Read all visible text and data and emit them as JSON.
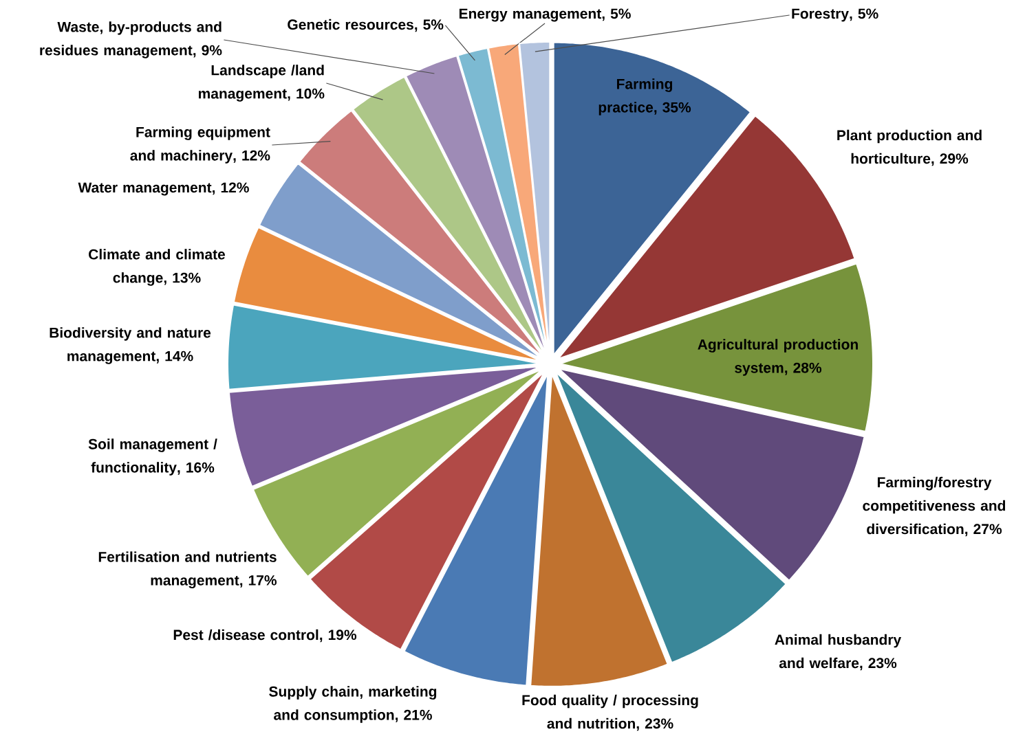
{
  "chart_data": {
    "type": "pie",
    "categories": [
      "Farming practice",
      "Plant production and horticulture",
      "Agricultural production system",
      "Farming/forestry competitiveness and diversification",
      "Animal husbandry and welfare",
      "Food quality / processing and nutrition",
      "Supply chain,  marketing and consumption",
      "Pest /disease control",
      "Fertilisation and nutrients management",
      "Soil management / functionality",
      "Biodiversity and nature management",
      "Climate and climate change",
      "Water management",
      "Farming equipment and machinery",
      "Landscape /land management",
      "Waste, by-products and residues management",
      "Genetic resources",
      "Energy management",
      "Forestry"
    ],
    "values": [
      35,
      29,
      28,
      27,
      23,
      23,
      21,
      19,
      17,
      16,
      14,
      13,
      12,
      12,
      10,
      9,
      5,
      5,
      5
    ],
    "value_labels": [
      ", 35%",
      ", 29%",
      ", 28%",
      ", 27%",
      ", 23%",
      ", 23%",
      ", 21%",
      ", 19%",
      ", 17%",
      ", 16%",
      ", 14%",
      ", 13%",
      ", 12%",
      ", 12%",
      ", 10%",
      ", 9%",
      ", 5%",
      ", 5%",
      ", 5%"
    ],
    "colors": [
      "#3c6496",
      "#953735",
      "#77933c",
      "#604a7b",
      "#3a8799",
      "#c0722f",
      "#4a7ab4",
      "#b14a47",
      "#92b054",
      "#7a5e99",
      "#4ba5bd",
      "#e98c3f",
      "#7f9ecb",
      "#cc7c7b",
      "#adc787",
      "#9e8bb6",
      "#7cbad2",
      "#f8a879",
      "#b3c3de"
    ],
    "legend": false
  }
}
